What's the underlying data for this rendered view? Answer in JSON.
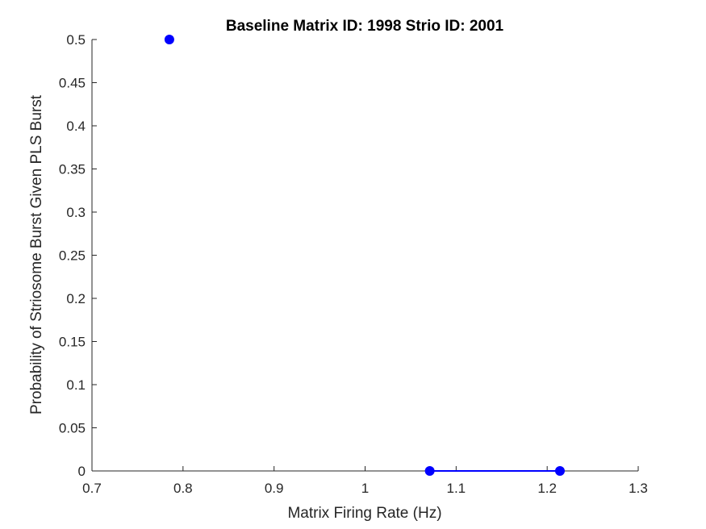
{
  "chart_data": {
    "type": "line",
    "title": "Baseline Matrix ID: 1998 Strio ID: 2001",
    "xlabel": "Matrix Firing Rate (Hz)",
    "ylabel": "Probability of Striosome Burst Given PLS Burst",
    "xlim": [
      0.7,
      1.3
    ],
    "ylim": [
      0,
      0.5
    ],
    "xticks": [
      "0.7",
      "0.8",
      "0.9",
      "1",
      "1.1",
      "1.2",
      "1.3"
    ],
    "yticks": [
      "0",
      "0.05",
      "0.1",
      "0.15",
      "0.2",
      "0.25",
      "0.3",
      "0.35",
      "0.4",
      "0.45",
      "0.5"
    ],
    "grid": false,
    "series": [
      {
        "x": [
          0.785,
          1.071,
          1.214
        ],
        "y": [
          0.5,
          0,
          0
        ],
        "color": "#0000ff",
        "marker": "circle"
      }
    ]
  }
}
